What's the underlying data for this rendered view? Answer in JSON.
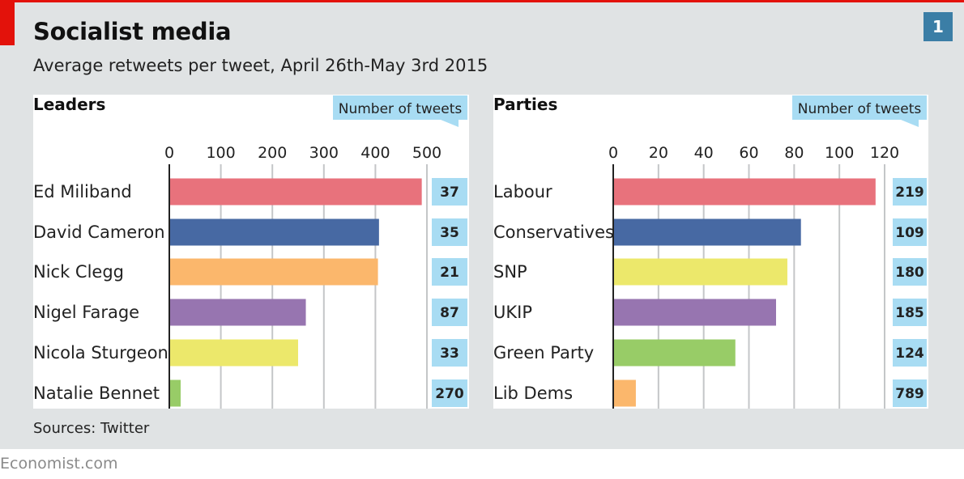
{
  "title": "Socialist media",
  "subtitle": "Average retweets per tweet, April 26th-May 3rd 2015",
  "chart_number": "1",
  "source": "Sources: Twitter",
  "brand": "Economist.com",
  "colors": {
    "frame_red": "#e3120b",
    "count_box": "#a8dcf3",
    "gridline": "#c4c6c8",
    "number_box": "#3b7ea6"
  },
  "chart_data": [
    {
      "type": "bar",
      "orientation": "horizontal",
      "title": "Leaders",
      "count_header": "Number of tweets",
      "categories": [
        "Ed Miliband",
        "David Cameron",
        "Nick Clegg",
        "Nigel Farage",
        "Nicola Sturgeon",
        "Natalie Bennet"
      ],
      "values": [
        490,
        407,
        405,
        265,
        250,
        22
      ],
      "tweet_counts": [
        "37",
        "35",
        "21",
        "87",
        "33",
        "270"
      ],
      "colors": [
        "#e8727c",
        "#4769a3",
        "#fbb76c",
        "#9775b0",
        "#ece86b",
        "#98cc67"
      ],
      "xlim": [
        0,
        500
      ],
      "xticks": [
        0,
        100,
        200,
        300,
        400,
        500
      ],
      "grid": true
    },
    {
      "type": "bar",
      "orientation": "horizontal",
      "title": "Parties",
      "count_header": "Number of tweets",
      "categories": [
        "Labour",
        "Conservatives",
        "SNP",
        "UKIP",
        "Green Party",
        "Lib Dems"
      ],
      "values": [
        116,
        83,
        77,
        72,
        54,
        10
      ],
      "tweet_counts": [
        "219",
        "109",
        "180",
        "185",
        "124",
        "789"
      ],
      "colors": [
        "#e8727c",
        "#4769a3",
        "#ece86b",
        "#9775b0",
        "#98cc67",
        "#fbb76c"
      ],
      "xlim": [
        0,
        120
      ],
      "xticks": [
        0,
        20,
        40,
        60,
        80,
        100,
        120
      ],
      "grid": true
    }
  ]
}
